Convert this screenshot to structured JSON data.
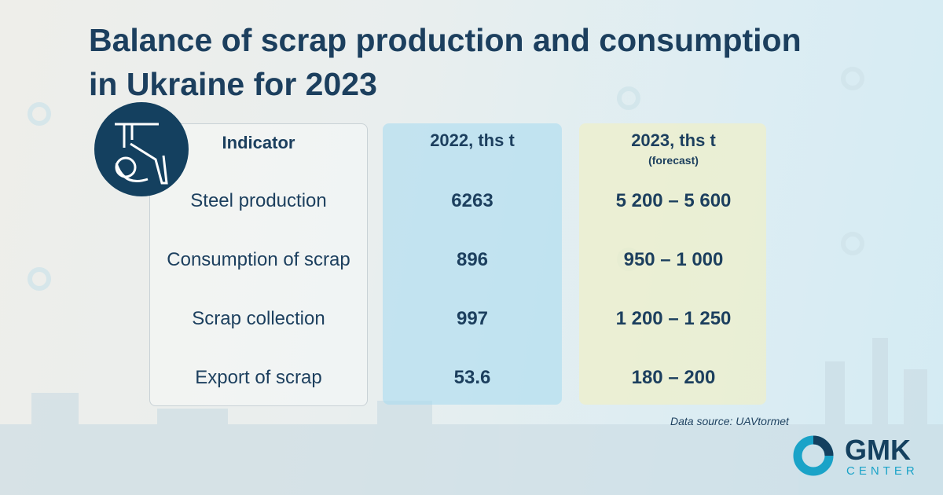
{
  "header": {
    "title_lines": [
      "Balance of scrap production and consumption",
      "in Ukraine for 2023"
    ]
  },
  "table": {
    "columns": [
      "Indicator",
      "2022, ths t",
      "2023, ths t"
    ],
    "column_note": "(forecast)",
    "rows": [
      [
        "Steel production",
        "6263",
        "5 200 – 5 600"
      ],
      [
        "Consumption of scrap",
        "896",
        "950 – 1 000"
      ],
      [
        "Scrap collection",
        "997",
        "1 200 – 1 250"
      ],
      [
        "Export of scrap",
        "53.6",
        "180 – 200"
      ]
    ]
  },
  "footer": {
    "source": "Data source: UAVtormet",
    "logo_main": "GMK",
    "logo_sub": "CENTER"
  }
}
